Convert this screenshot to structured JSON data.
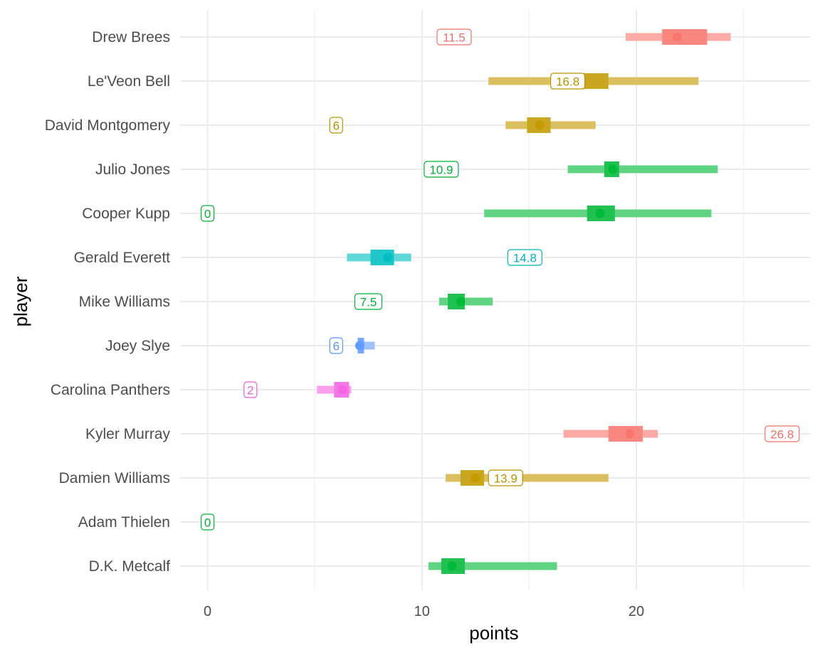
{
  "chart_data": {
    "type": "point-interval",
    "xlabel": "points",
    "ylabel": "player",
    "xlim": [
      -3.5,
      28
    ],
    "x_ticks": [
      0,
      10,
      20
    ],
    "x_tick_labels": [
      "0",
      "10",
      "20"
    ],
    "x_minor_ticks": [
      5,
      15,
      25
    ],
    "grid": true,
    "legend": "none",
    "players": [
      {
        "name": "Drew Brees",
        "color": "#F8766D",
        "wide": [
          19.5,
          24.4
        ],
        "narrow": [
          21.2,
          23.3
        ],
        "point": 21.9,
        "actual": 11.5,
        "actual_label": "11.5"
      },
      {
        "name": "Le'Veon Bell",
        "color": "#C49A00",
        "wide": [
          13.1,
          22.9
        ],
        "narrow": [
          16.2,
          18.7
        ],
        "point": 17.4,
        "actual": 16.8,
        "actual_label": "16.8"
      },
      {
        "name": "David Montgomery",
        "color": "#C49A00",
        "wide": [
          13.9,
          18.1
        ],
        "narrow": [
          14.9,
          16.0
        ],
        "point": 15.5,
        "actual": 6,
        "actual_label": "6"
      },
      {
        "name": "Julio Jones",
        "color": "#00BA38",
        "wide": [
          16.8,
          23.8
        ],
        "narrow": [
          18.5,
          19.2
        ],
        "point": 18.9,
        "actual": 10.9,
        "actual_label": "10.9"
      },
      {
        "name": "Cooper Kupp",
        "color": "#00BA38",
        "wide": [
          12.9,
          23.5
        ],
        "narrow": [
          17.7,
          19.0
        ],
        "point": 18.3,
        "actual": 0,
        "actual_label": "0"
      },
      {
        "name": "Gerald Everett",
        "color": "#00BFC4",
        "wide": [
          6.5,
          9.5
        ],
        "narrow": [
          7.6,
          8.7
        ],
        "point": 8.4,
        "actual": 14.8,
        "actual_label": "14.8"
      },
      {
        "name": "Mike Williams",
        "color": "#00BA38",
        "wide": [
          10.8,
          13.3
        ],
        "narrow": [
          11.2,
          12.0
        ],
        "point": 11.8,
        "actual": 7.5,
        "actual_label": "7.5"
      },
      {
        "name": "Joey Slye",
        "color": "#619CFF",
        "wide": [
          7.0,
          7.8
        ],
        "narrow": [
          7.0,
          7.3
        ],
        "point": 7.1,
        "actual": 6,
        "actual_label": "6"
      },
      {
        "name": "Carolina Panthers",
        "color": "#F564E3",
        "wide": [
          5.1,
          6.7
        ],
        "narrow": [
          5.9,
          6.6
        ],
        "point": 6.3,
        "actual": 2,
        "actual_label": "2"
      },
      {
        "name": "Kyler Murray",
        "color": "#F8766D",
        "wide": [
          16.6,
          21.0
        ],
        "narrow": [
          18.7,
          20.3
        ],
        "point": 19.7,
        "actual": 26.8,
        "actual_label": "26.8"
      },
      {
        "name": "Damien Williams",
        "color": "#C49A00",
        "wide": [
          11.1,
          18.7
        ],
        "narrow": [
          11.8,
          12.9
        ],
        "point": 12.5,
        "actual": 13.9,
        "actual_label": "13.9"
      },
      {
        "name": "Adam Thielen",
        "color": "#00BA38",
        "wide": null,
        "narrow": null,
        "point": null,
        "actual": 0,
        "actual_label": "0"
      },
      {
        "name": "D.K. Metcalf",
        "color": "#00BA38",
        "wide": [
          10.3,
          16.3
        ],
        "narrow": [
          10.9,
          12.0
        ],
        "point": 11.4,
        "actual": null,
        "actual_label": null
      }
    ]
  }
}
